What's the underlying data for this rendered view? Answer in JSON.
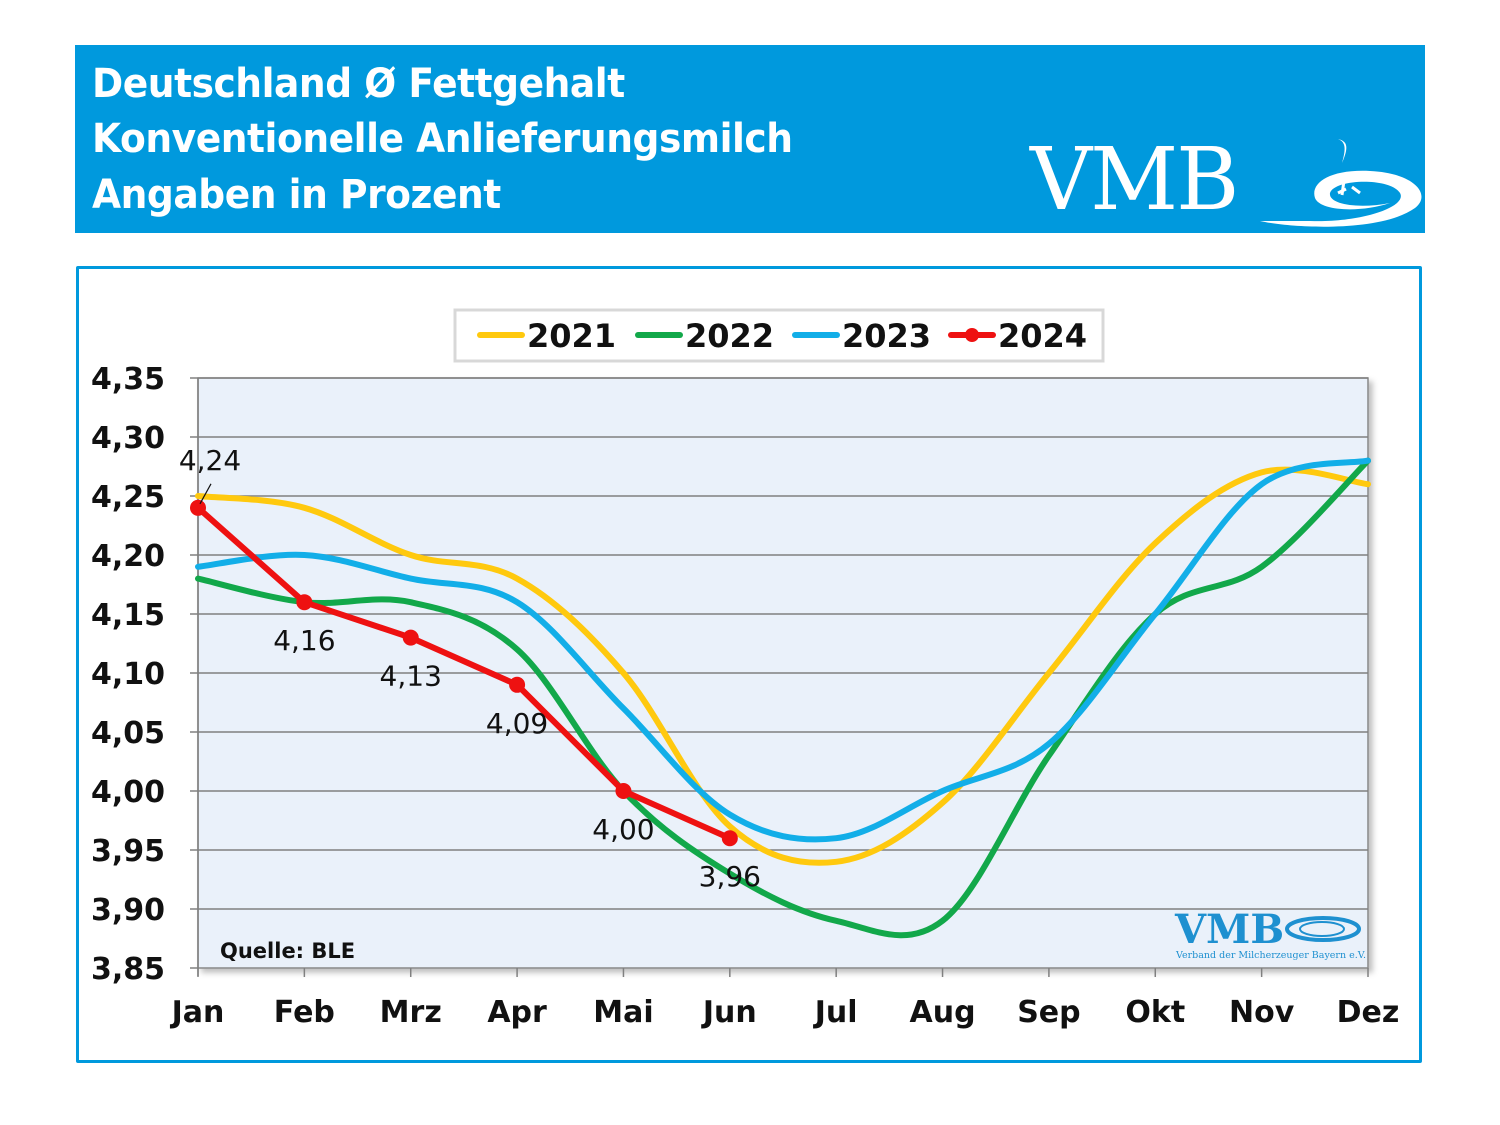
{
  "header": {
    "title_lines": [
      "Deutschland Ø Fettgehalt",
      "Konventionelle Anlieferungsmilch",
      "Angaben in Prozent"
    ],
    "logo_text": "VMB",
    "background_color": "#0099dd"
  },
  "watermark_logo": {
    "text": "VMB",
    "subtitle": "Verband der Milcherzeuger Bayern e.V."
  },
  "chart_data": {
    "type": "line",
    "title": "Deutschland Ø Fettgehalt Konventionelle Anlieferungsmilch Angaben in Prozent",
    "xlabel": "",
    "ylabel": "",
    "categories": [
      "Jan",
      "Feb",
      "Mrz",
      "Apr",
      "Mai",
      "Jun",
      "Jul",
      "Aug",
      "Sep",
      "Okt",
      "Nov",
      "Dez"
    ],
    "ylim": [
      3.85,
      4.35
    ],
    "yticks": [
      4.35,
      4.3,
      4.25,
      4.2,
      4.15,
      4.1,
      4.05,
      4.0,
      3.95,
      3.9,
      3.85
    ],
    "ytick_labels": [
      "4,35",
      "4,30",
      "4,25",
      "4,20",
      "4,15",
      "4,10",
      "4,05",
      "4,00",
      "3,95",
      "3,90",
      "3,85"
    ],
    "grid": "horizontal",
    "legend_position": "top-center",
    "source_note": "Quelle: BLE",
    "series": [
      {
        "name": "2021",
        "color": "#ffc90e",
        "smooth": true,
        "markers": false,
        "values": [
          4.25,
          4.24,
          4.2,
          4.18,
          4.1,
          3.97,
          3.94,
          3.99,
          4.1,
          4.21,
          4.27,
          4.26
        ]
      },
      {
        "name": "2022",
        "color": "#12a84a",
        "smooth": true,
        "markers": false,
        "values": [
          4.18,
          4.16,
          4.16,
          4.12,
          4.0,
          3.93,
          3.89,
          3.89,
          4.03,
          4.15,
          4.19,
          4.28
        ]
      },
      {
        "name": "2023",
        "color": "#12aee8",
        "smooth": true,
        "markers": false,
        "values": [
          4.19,
          4.2,
          4.18,
          4.16,
          4.07,
          3.98,
          3.96,
          4.0,
          4.04,
          4.15,
          4.26,
          4.28
        ]
      },
      {
        "name": "2024",
        "color": "#ee1111",
        "smooth": false,
        "markers": true,
        "values": [
          4.24,
          4.16,
          4.13,
          4.09,
          4.0,
          3.96
        ],
        "data_labels": [
          "4,24",
          "4,16",
          "4,13",
          "4,09",
          "4,00",
          "3,96"
        ]
      }
    ]
  }
}
